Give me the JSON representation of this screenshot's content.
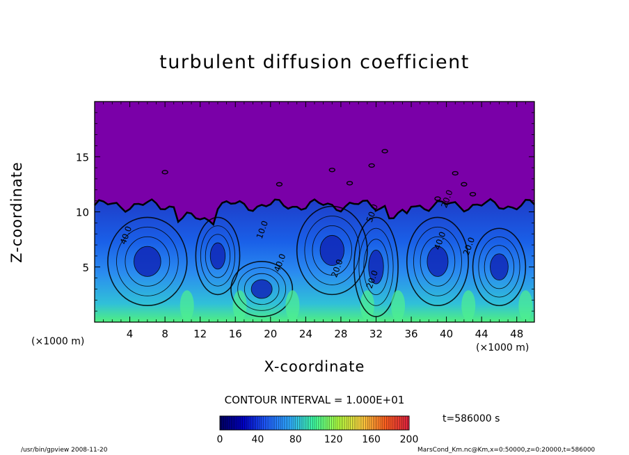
{
  "chart_data": {
    "type": "heatmap",
    "title": "turbulent diffusion coefficient",
    "xlabel": "X-coordinate",
    "ylabel": "Z-coordinate",
    "x_unit": "(×1000 m)",
    "x_unit_right": "(×1000 m)",
    "x_ticks": [
      4,
      8,
      12,
      16,
      20,
      24,
      28,
      32,
      36,
      40,
      44,
      48
    ],
    "y_ticks": [
      5,
      10,
      15
    ],
    "xlim": [
      0,
      50
    ],
    "ylim": [
      0,
      20
    ],
    "contour_interval_text": "CONTOUR INTERVAL = 1.000E+01",
    "contour_labels": [
      "40.0",
      "10.0",
      "40.0",
      "20.0",
      "20.0",
      "50.0",
      "40.0",
      "20.0",
      "20.0"
    ],
    "colorbar": {
      "range": [
        0,
        200
      ],
      "ticks": [
        "0",
        "40",
        "80",
        "120",
        "160",
        "200"
      ],
      "colors": [
        "#000060",
        "#0000c8",
        "#2060ff",
        "#30b0ff",
        "#40ffa0",
        "#b0ff40",
        "#ffd040",
        "#ff6020",
        "#e02040"
      ]
    },
    "background_color": "#7a00a8",
    "time": "t=586000 s",
    "footer_left": "/usr/bin/gpview   2008-11-20",
    "footer_right": "MarsCond_Km.nc@Km,x=0:50000,z=0:20000,t=586000"
  }
}
